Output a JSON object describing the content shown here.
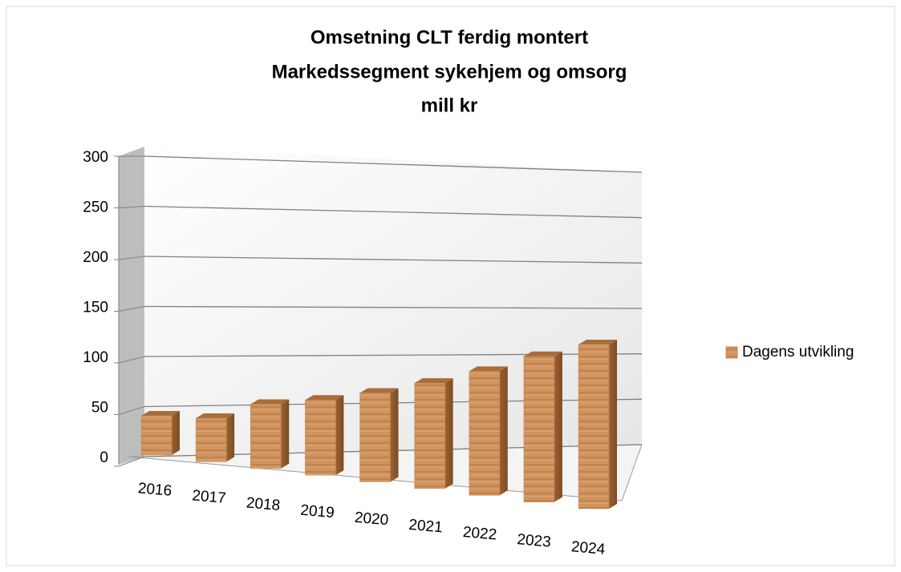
{
  "chart_data": {
    "type": "bar3d",
    "title": [
      "Omsetning CLT ferdig montert",
      "Markedssegment sykehjem og omsorg",
      "mill kr"
    ],
    "categories": [
      "2016",
      "2017",
      "2018",
      "2019",
      "2020",
      "2021",
      "2022",
      "2023",
      "2024"
    ],
    "series": [
      {
        "name": "Dagens utvikling",
        "color": "#c98a52",
        "values": [
          35,
          38,
          55,
          63,
          73,
          85,
          98,
          113,
          125
        ]
      }
    ],
    "ylim": [
      0,
      300
    ],
    "yticks": [
      0,
      50,
      100,
      150,
      200,
      250,
      300
    ],
    "grid": true,
    "legend": "right"
  }
}
